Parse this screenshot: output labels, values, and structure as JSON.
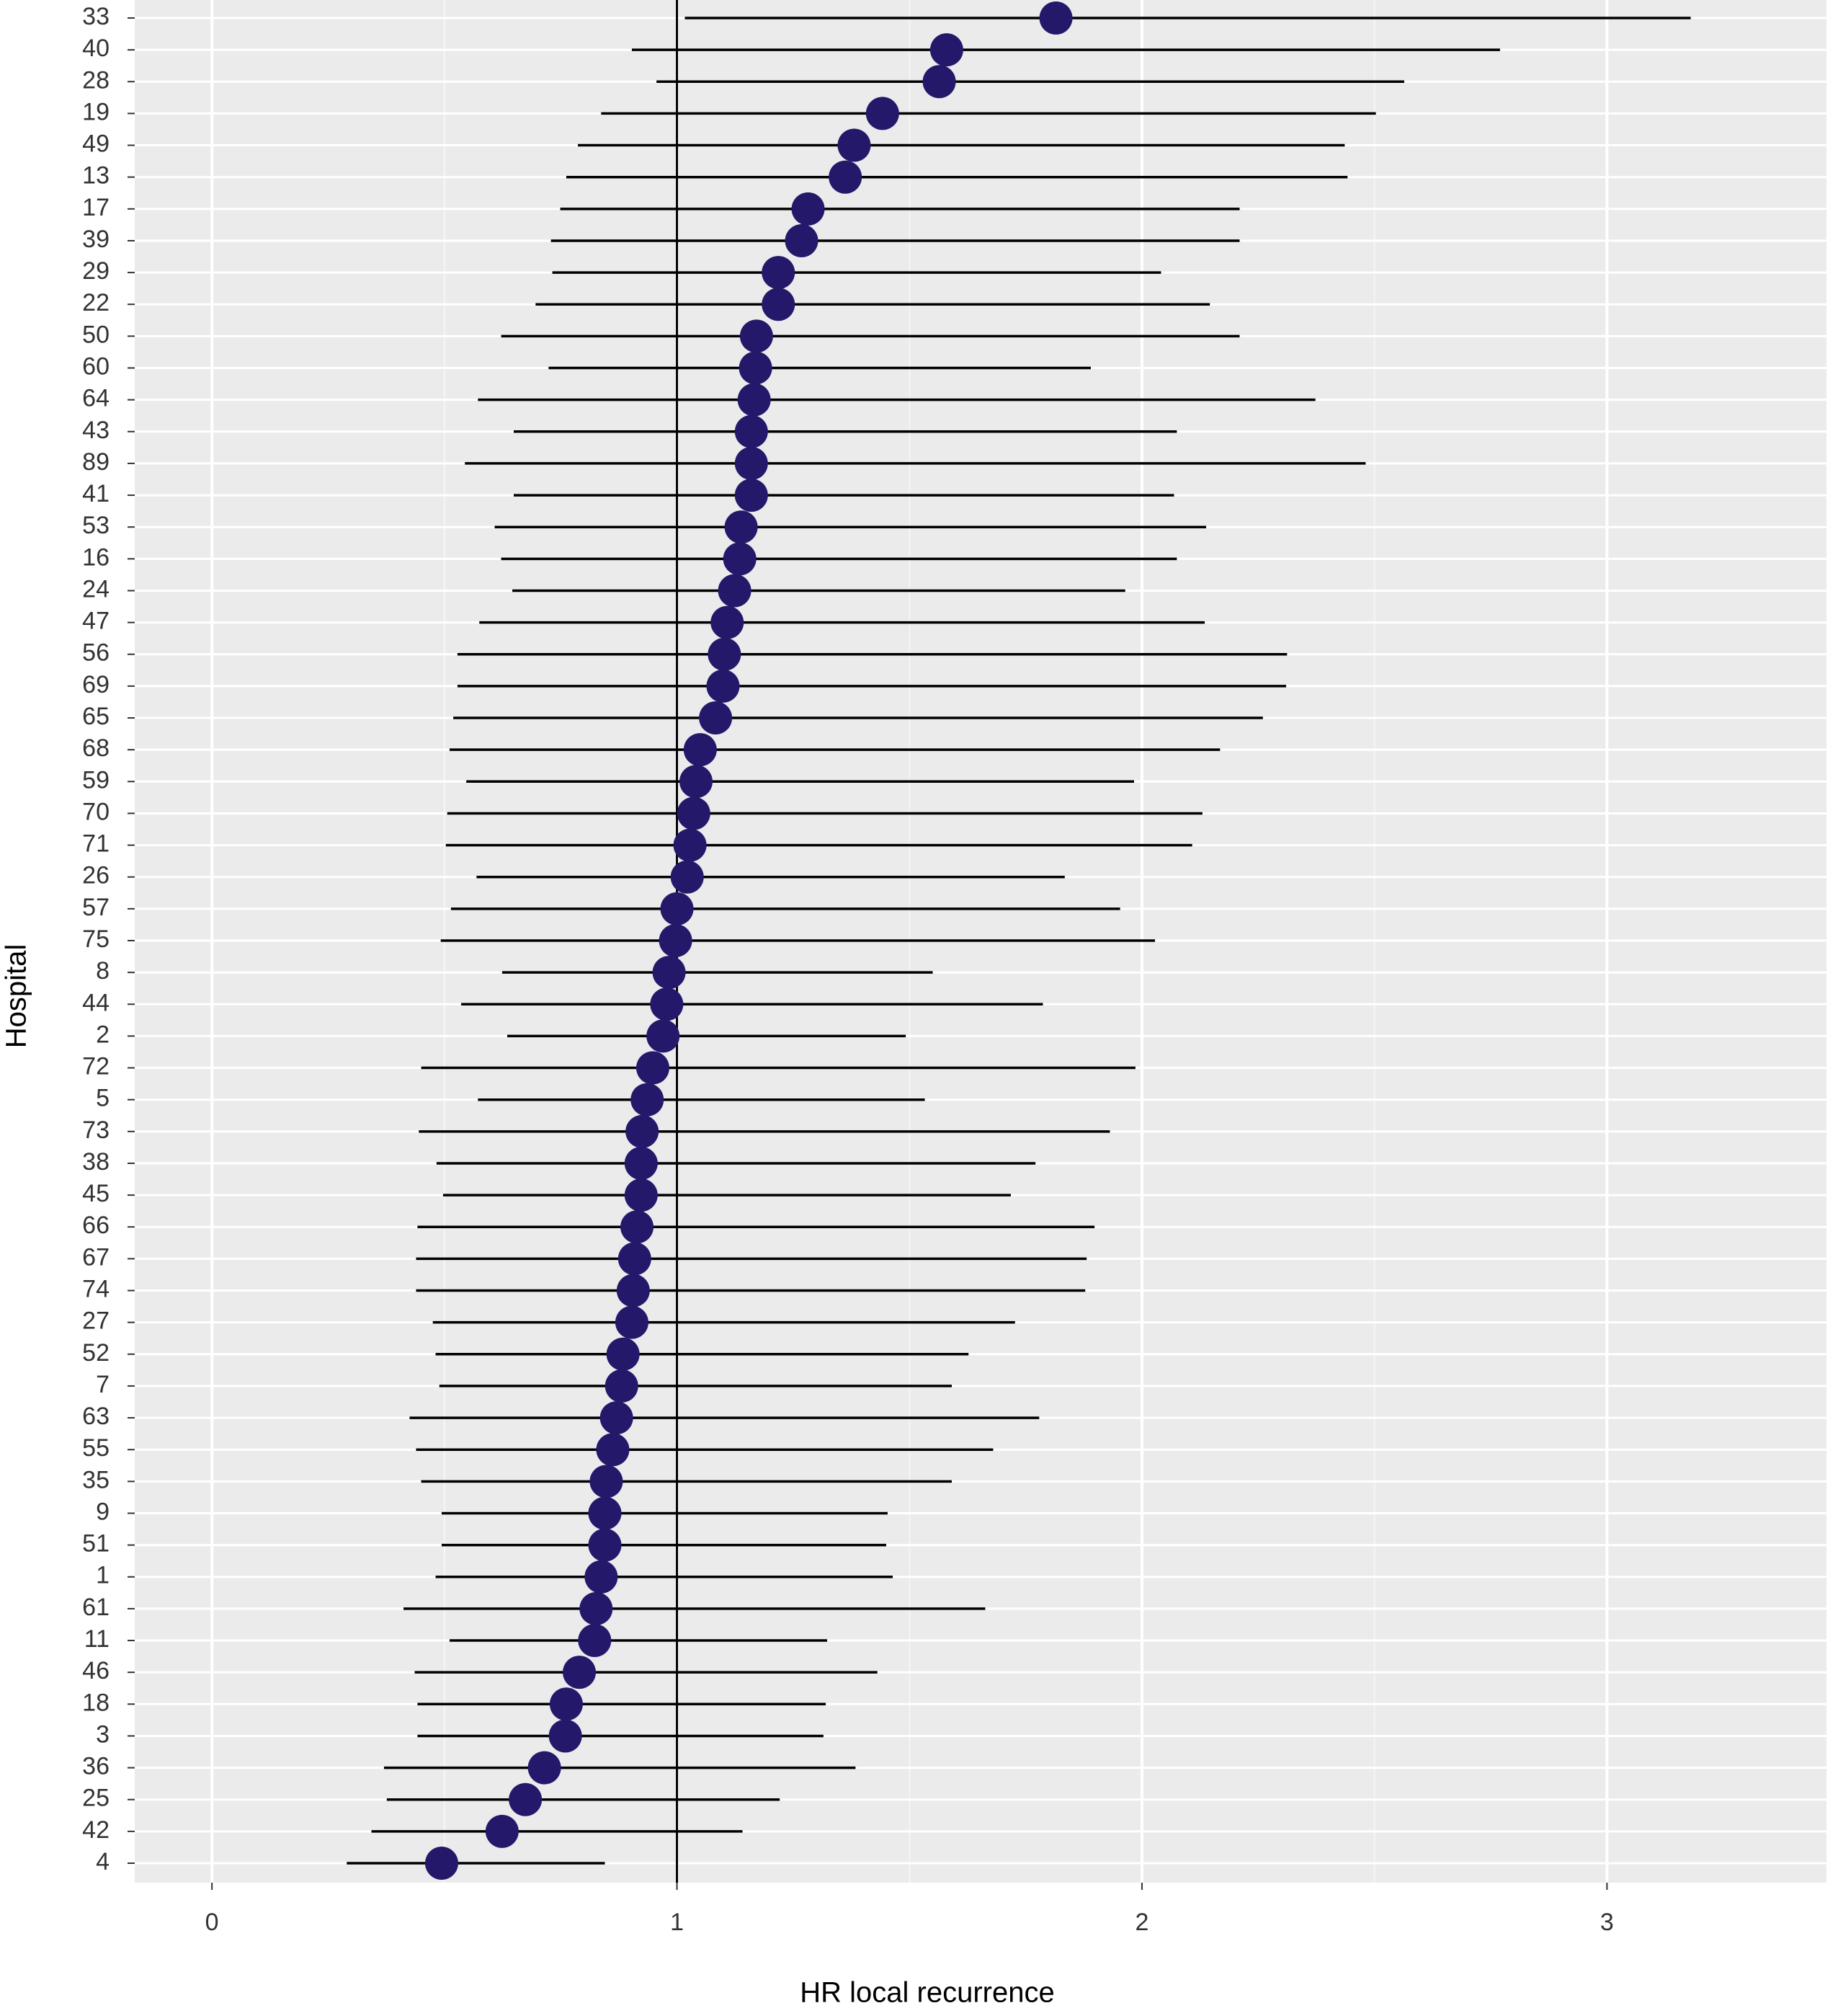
{
  "chart_data": {
    "type": "forest",
    "x_label": "HR local recurrence",
    "y_label": "Hospital",
    "categories": [
      "33",
      "40",
      "28",
      "19",
      "49",
      "13",
      "17",
      "39",
      "29",
      "22",
      "50",
      "60",
      "64",
      "43",
      "89",
      "41",
      "53",
      "16",
      "24",
      "47",
      "56",
      "69",
      "65",
      "68",
      "59",
      "70",
      "71",
      "26",
      "57",
      "75",
      "8",
      "44",
      "2",
      "72",
      "5",
      "73",
      "38",
      "45",
      "66",
      "67",
      "74",
      "27",
      "52",
      "7",
      "63",
      "55",
      "35",
      "9",
      "51",
      "1",
      "61",
      "11",
      "46",
      "18",
      "3",
      "36",
      "25",
      "42",
      "4"
    ],
    "values": [
      1.815,
      1.58,
      1.564,
      1.442,
      1.381,
      1.362,
      1.282,
      1.268,
      1.218,
      1.218,
      1.171,
      1.169,
      1.166,
      1.16,
      1.16,
      1.16,
      1.138,
      1.135,
      1.124,
      1.108,
      1.102,
      1.099,
      1.083,
      1.05,
      1.041,
      1.036,
      1.028,
      1.022,
      1.0,
      0.997,
      0.983,
      0.978,
      0.97,
      0.948,
      0.936,
      0.925,
      0.923,
      0.923,
      0.914,
      0.909,
      0.906,
      0.903,
      0.884,
      0.881,
      0.87,
      0.862,
      0.848,
      0.845,
      0.845,
      0.837,
      0.826,
      0.823,
      0.79,
      0.762,
      0.76,
      0.715,
      0.674,
      0.624,
      0.494
    ],
    "lower": [
      1.017,
      0.903,
      0.956,
      0.837,
      0.787,
      0.762,
      0.749,
      0.729,
      0.732,
      0.696,
      0.622,
      0.724,
      0.572,
      0.649,
      0.544,
      0.649,
      0.608,
      0.622,
      0.646,
      0.575,
      0.528,
      0.528,
      0.519,
      0.511,
      0.547,
      0.506,
      0.503,
      0.569,
      0.514,
      0.492,
      0.624,
      0.536,
      0.635,
      0.45,
      0.572,
      0.445,
      0.483,
      0.497,
      0.442,
      0.439,
      0.439,
      0.475,
      0.481,
      0.489,
      0.425,
      0.439,
      0.45,
      0.494,
      0.494,
      0.481,
      0.412,
      0.511,
      0.436,
      0.442,
      0.442,
      0.37,
      0.376,
      0.343,
      0.29
    ],
    "upper": [
      3.18,
      2.77,
      2.564,
      2.503,
      2.436,
      2.442,
      2.21,
      2.21,
      2.041,
      2.146,
      2.21,
      1.89,
      2.373,
      2.075,
      2.481,
      2.069,
      2.138,
      2.075,
      1.964,
      2.135,
      2.312,
      2.31,
      2.26,
      2.168,
      1.983,
      2.13,
      2.108,
      1.834,
      1.953,
      2.028,
      1.55,
      1.787,
      1.492,
      1.986,
      1.533,
      1.931,
      1.771,
      1.718,
      1.898,
      1.881,
      1.878,
      1.727,
      1.627,
      1.591,
      1.779,
      1.68,
      1.591,
      1.453,
      1.45,
      1.464,
      1.663,
      1.323,
      1.431,
      1.32,
      1.315,
      1.384,
      1.221,
      1.141,
      0.845
    ],
    "color": "#24186b",
    "xlim": [
      -0.166,
      3.472
    ],
    "xticks": [
      0,
      1,
      2,
      3
    ],
    "minor_xticks": [
      0.5,
      1.5,
      2.5
    ],
    "reference_line": 1,
    "grid": true
  }
}
